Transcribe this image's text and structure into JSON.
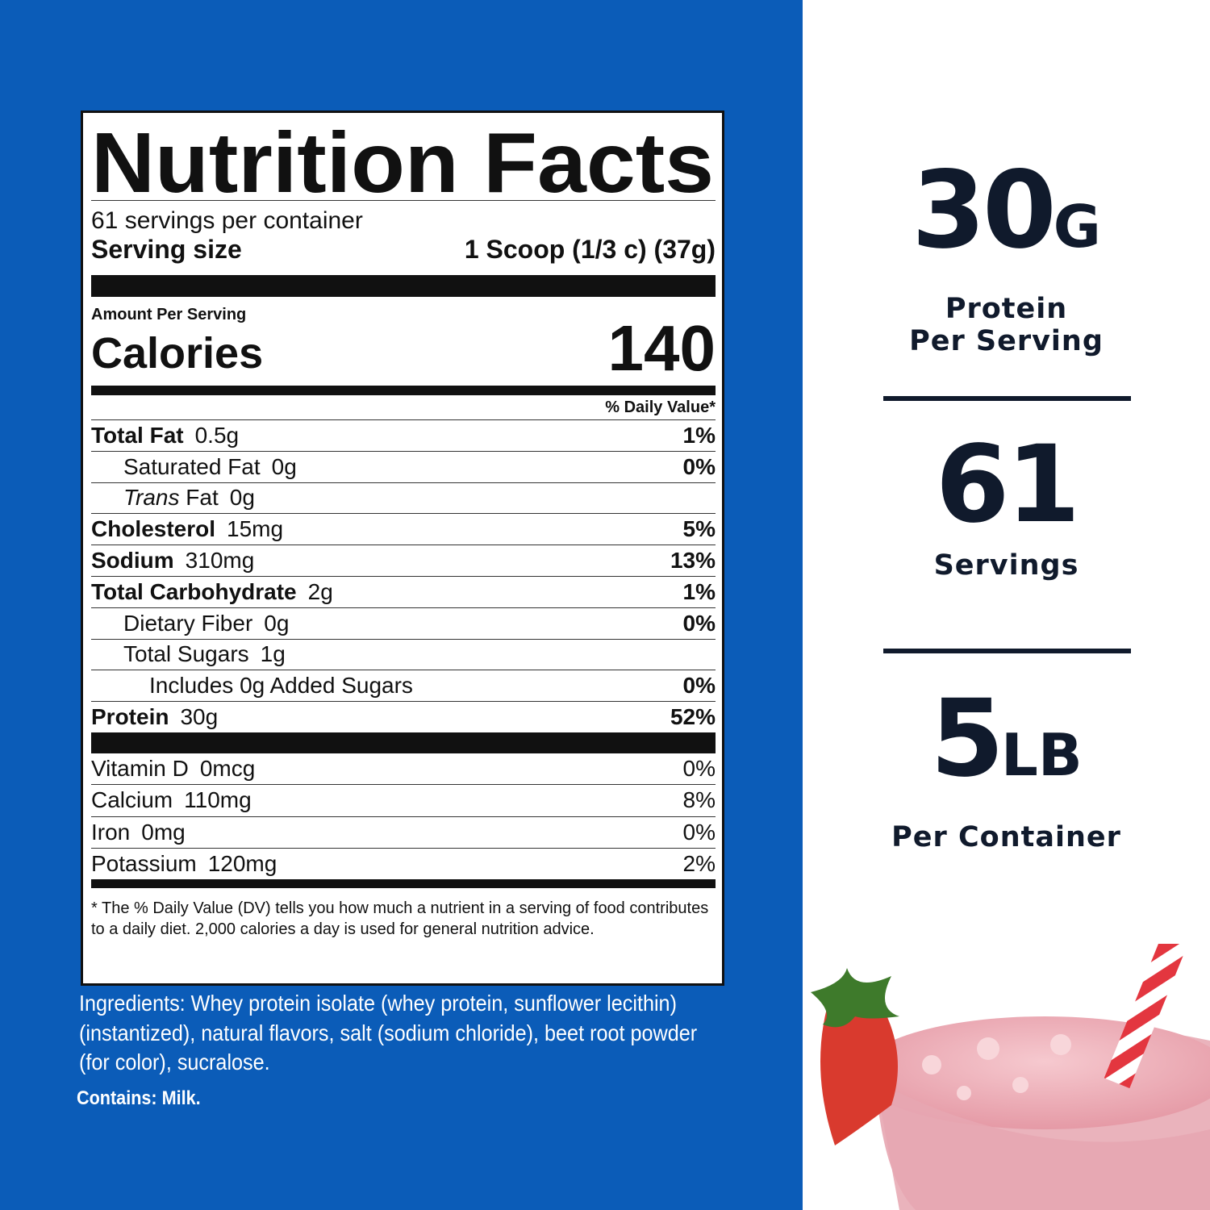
{
  "label": {
    "title": "Nutrition Facts",
    "servings_per_container": "61 servings per container",
    "serving_size_label": "Serving size",
    "serving_size_value": "1 Scoop (1/3 c) (37g)",
    "amount_per_serving": "Amount Per Serving",
    "calories_label": "Calories",
    "calories_value": "140",
    "daily_value_header": "% Daily Value*",
    "nutrients": [
      {
        "name": "Total Fat",
        "amount": "0.5g",
        "dv": "1%"
      },
      {
        "name": "Saturated Fat",
        "amount": "0g",
        "dv": "0%"
      },
      {
        "name_italic": "Trans",
        "name": "Fat",
        "amount": "0g"
      },
      {
        "name": "Cholesterol",
        "amount": "15mg",
        "dv": "5%"
      },
      {
        "name": "Sodium",
        "amount": "310mg",
        "dv": "13%"
      },
      {
        "name": "Total Carbohydrate",
        "amount": "2g",
        "dv": "1%"
      },
      {
        "name": "Dietary Fiber",
        "amount": "0g",
        "dv": "0%"
      },
      {
        "name": "Total Sugars",
        "amount": "1g"
      },
      {
        "name": "Includes 0g Added Sugars",
        "dv": "0%"
      },
      {
        "name": "Protein",
        "amount": "30g",
        "dv": "52%"
      }
    ],
    "vitamins": [
      {
        "name": "Vitamin D",
        "amount": "0mcg",
        "dv": "0%"
      },
      {
        "name": "Calcium",
        "amount": "110mg",
        "dv": "8%"
      },
      {
        "name": "Iron",
        "amount": "0mg",
        "dv": "0%"
      },
      {
        "name": "Potassium",
        "amount": "120mg",
        "dv": "2%"
      }
    ],
    "footnote": "* The % Daily Value (DV) tells you how much a nutrient in a serving of food contributes to a daily diet. 2,000 calories a day is used for general nutrition advice."
  },
  "ingredients": "Ingredients: Whey protein isolate (whey protein, sunflower lecithin)(instantized), natural flavors, salt (sodium chloride), beet root powder (for color), sucralose.",
  "contains": "Contains: Milk.",
  "stats": [
    {
      "value": "30",
      "unit": "G",
      "caption_lines": [
        "Protein",
        "Per Serving"
      ]
    },
    {
      "value": "61",
      "caption_lines": [
        "Servings"
      ]
    },
    {
      "value": "5",
      "unit": "LB",
      "caption_lines": [
        "Per Container"
      ]
    }
  ]
}
